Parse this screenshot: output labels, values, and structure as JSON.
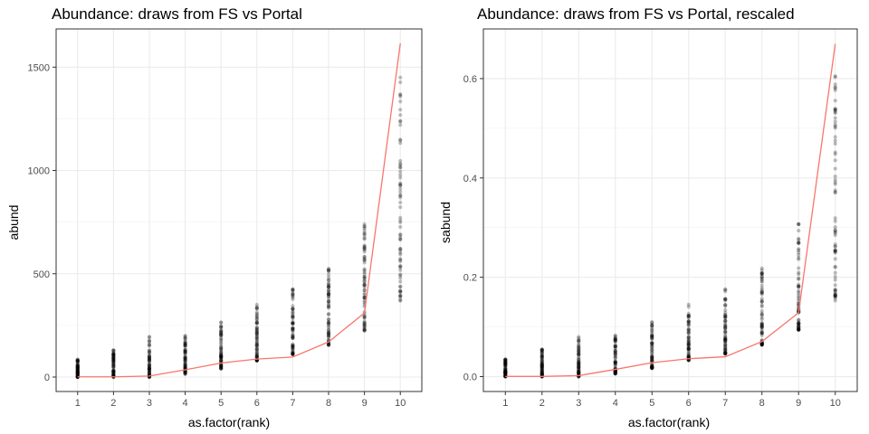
{
  "chart_data": [
    {
      "type": "scatter",
      "title": "Abundance: draws from FS vs Portal",
      "xlabel": "as.factor(rank)",
      "ylabel": "abund",
      "categories": [
        "1",
        "2",
        "3",
        "4",
        "5",
        "6",
        "7",
        "8",
        "9",
        "10"
      ],
      "y_ticks": [
        0,
        500,
        1000,
        1500
      ],
      "y_tick_labels": [
        "0",
        "500",
        "1000",
        "1500"
      ],
      "ylim": [
        -70,
        1685
      ],
      "grid": true,
      "point_color": "#000000",
      "line_color": "#F8766D",
      "point_ranges": [
        {
          "category": "1",
          "min": 0,
          "max": 85
        },
        {
          "category": "2",
          "min": 0,
          "max": 130
        },
        {
          "category": "3",
          "min": 0,
          "max": 195
        },
        {
          "category": "4",
          "min": 15,
          "max": 200
        },
        {
          "category": "5",
          "min": 40,
          "max": 265
        },
        {
          "category": "6",
          "min": 80,
          "max": 350
        },
        {
          "category": "7",
          "min": 110,
          "max": 425
        },
        {
          "category": "8",
          "min": 155,
          "max": 525
        },
        {
          "category": "9",
          "min": 225,
          "max": 740
        },
        {
          "category": "10",
          "min": 370,
          "max": 1450
        }
      ],
      "line_series": {
        "name": "",
        "values": [
          1,
          1,
          5,
          35,
          68,
          87,
          97,
          170,
          310,
          1615
        ]
      }
    },
    {
      "type": "scatter",
      "title": "Abundance: draws from FS vs Portal, rescaled",
      "xlabel": "as.factor(rank)",
      "ylabel": "sabund",
      "categories": [
        "1",
        "2",
        "3",
        "4",
        "5",
        "6",
        "7",
        "8",
        "9",
        "10"
      ],
      "y_ticks": [
        0.0,
        0.2,
        0.4,
        0.6
      ],
      "y_tick_labels": [
        "0.0",
        "0.2",
        "0.4",
        "0.6"
      ],
      "ylim": [
        -0.03,
        0.7
      ],
      "grid": true,
      "point_color": "#000000",
      "line_color": "#F8766D",
      "point_ranges": [
        {
          "category": "1",
          "min": 0,
          "max": 0.035
        },
        {
          "category": "2",
          "min": 0,
          "max": 0.055
        },
        {
          "category": "3",
          "min": 0,
          "max": 0.08
        },
        {
          "category": "4",
          "min": 0.006,
          "max": 0.083
        },
        {
          "category": "5",
          "min": 0.017,
          "max": 0.11
        },
        {
          "category": "6",
          "min": 0.033,
          "max": 0.145
        },
        {
          "category": "7",
          "min": 0.046,
          "max": 0.176
        },
        {
          "category": "8",
          "min": 0.064,
          "max": 0.218
        },
        {
          "category": "9",
          "min": 0.094,
          "max": 0.307
        },
        {
          "category": "10",
          "min": 0.153,
          "max": 0.605
        }
      ],
      "line_series": {
        "name": "",
        "values": [
          0.0004,
          0.0004,
          0.002,
          0.0145,
          0.028,
          0.036,
          0.04,
          0.0705,
          0.1285,
          0.67
        ]
      }
    }
  ]
}
